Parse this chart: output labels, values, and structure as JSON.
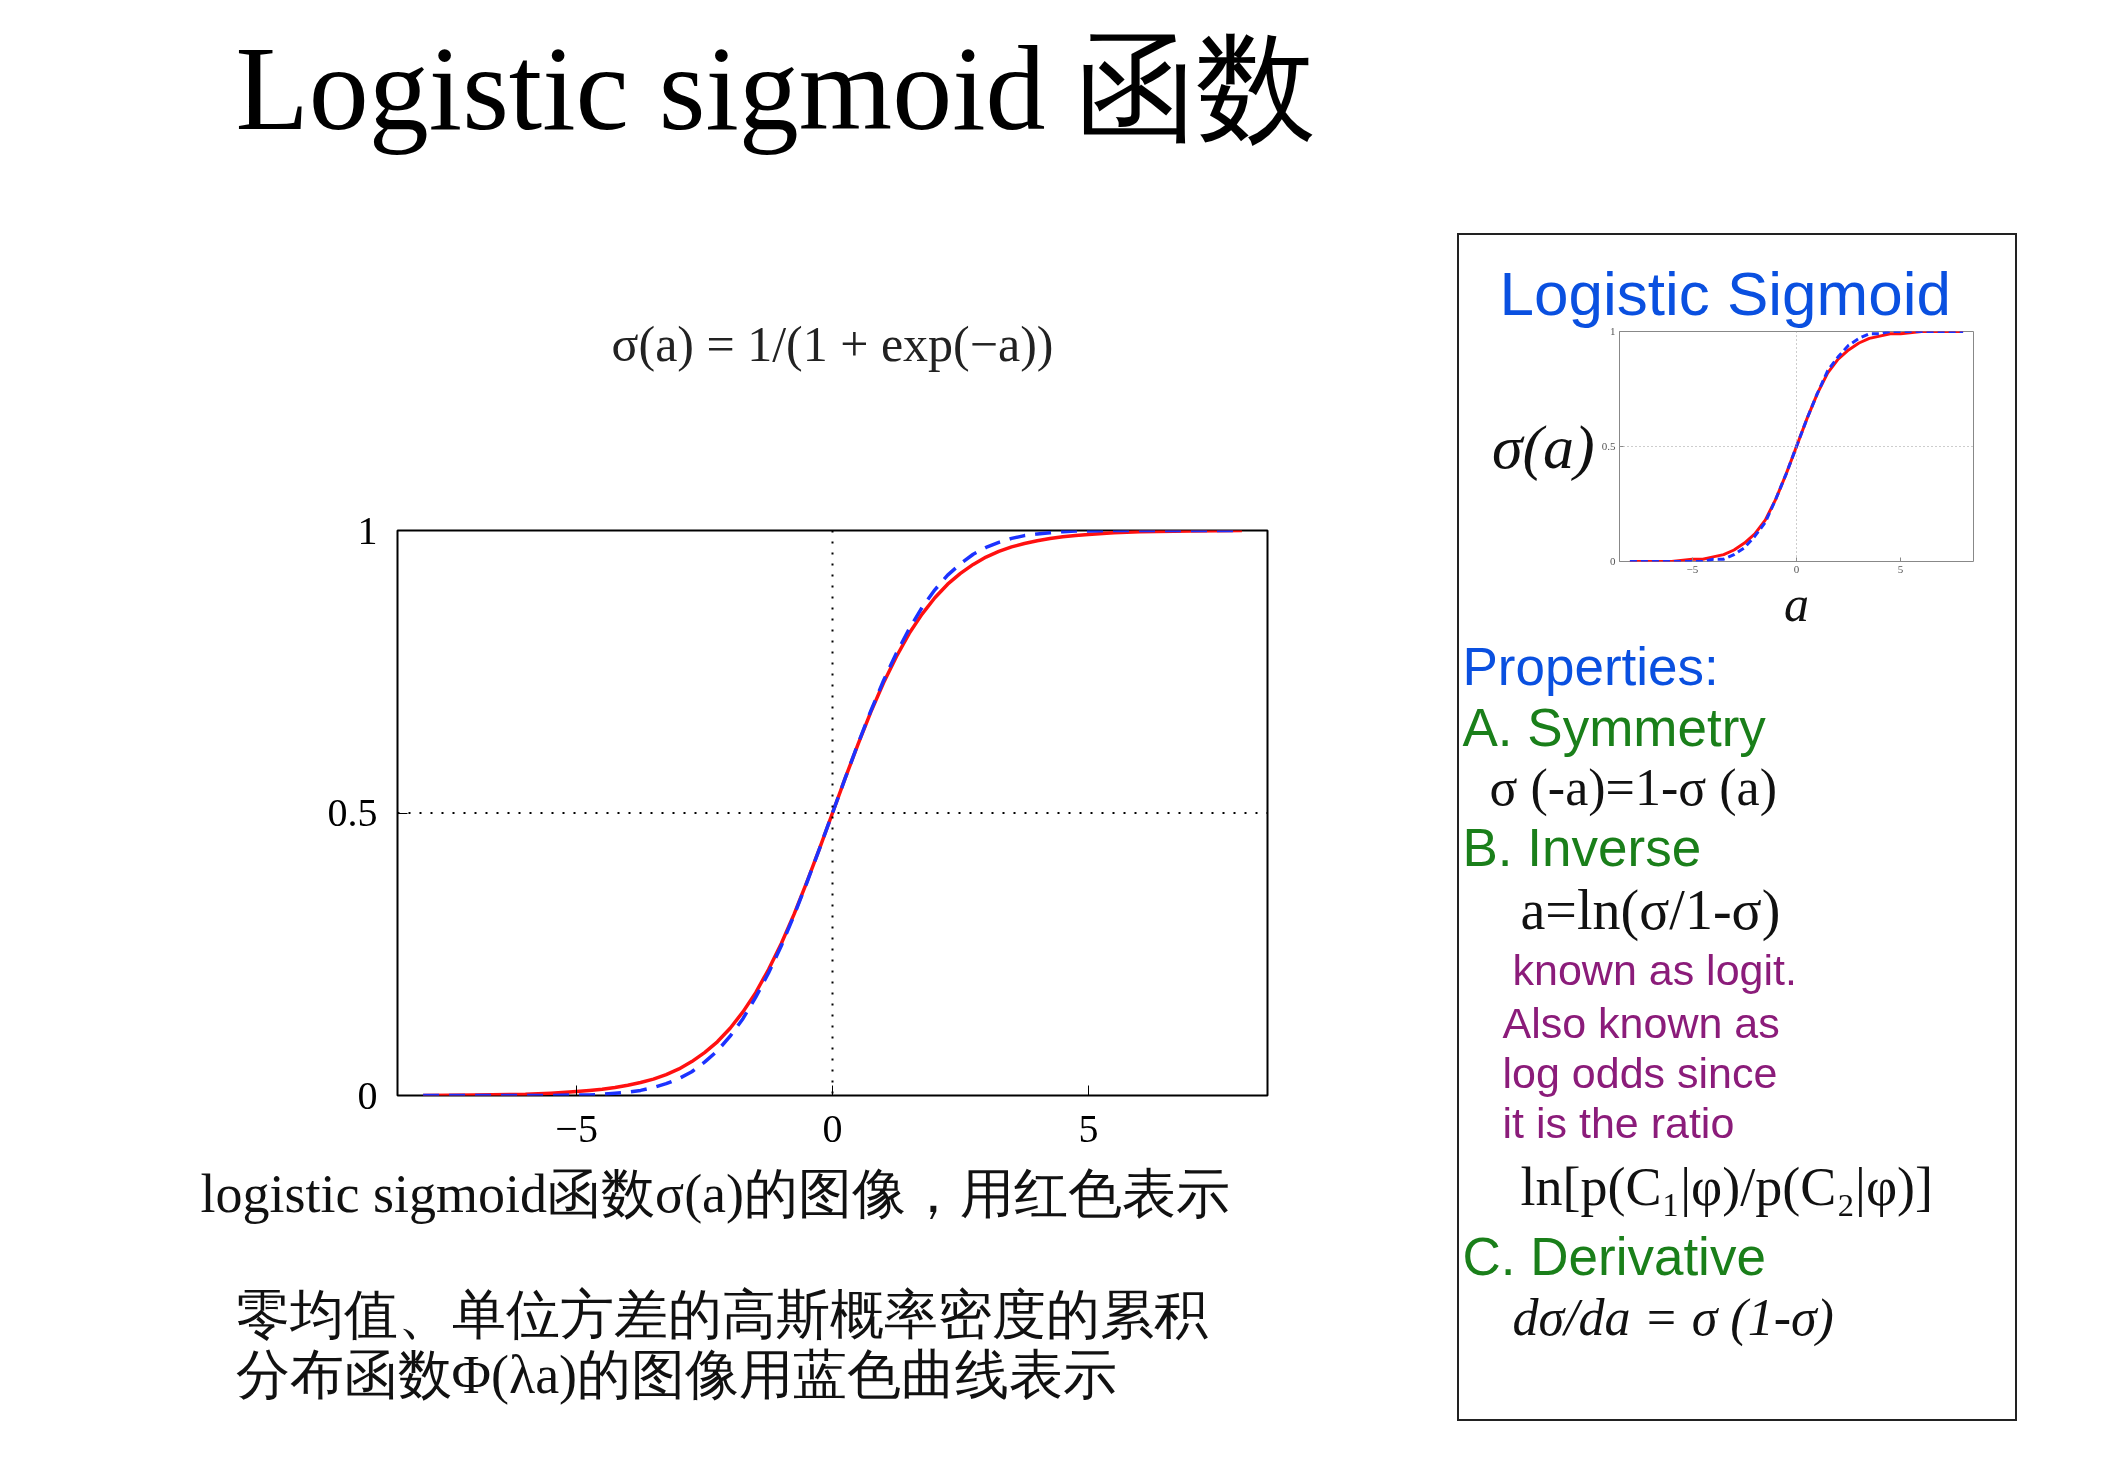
{
  "chart_data": [
    {
      "type": "line",
      "title": "Logistic sigmoid 函数",
      "subtitle": "σ(a) = 1/(1 + exp(−a))",
      "x": [
        -8,
        -7,
        -6,
        -5.5,
        -5,
        -4.75,
        -4.5,
        -4.25,
        -4,
        -3.75,
        -3.5,
        -3.25,
        -3,
        -2.75,
        -2.5,
        -2.25,
        -2,
        -1.75,
        -1.5,
        -1.25,
        -1,
        -0.75,
        -0.5,
        -0.25,
        0,
        0.25,
        0.5,
        0.75,
        1,
        1.25,
        1.5,
        1.75,
        2,
        2.25,
        2.5,
        2.75,
        3,
        3.25,
        3.5,
        3.75,
        4,
        4.25,
        4.5,
        4.75,
        5,
        5.5,
        6,
        7,
        8
      ],
      "series": [
        {
          "color": "#ff1010",
          "line_style": "solid",
          "values": [
            0,
            0.001,
            0.002,
            0.004,
            0.007,
            0.009,
            0.011,
            0.014,
            0.018,
            0.023,
            0.029,
            0.037,
            0.047,
            0.06,
            0.076,
            0.095,
            0.119,
            0.148,
            0.182,
            0.223,
            0.269,
            0.321,
            0.378,
            0.438,
            0.5,
            0.562,
            0.622,
            0.679,
            0.731,
            0.777,
            0.818,
            0.852,
            0.881,
            0.905,
            0.924,
            0.94,
            0.953,
            0.963,
            0.971,
            0.977,
            0.982,
            0.986,
            0.989,
            0.991,
            0.993,
            0.996,
            0.998,
            0.999,
            1
          ]
        },
        {
          "color": "#1c32ff",
          "line_style": "dashed",
          "values": [
            0,
            0,
            0,
            0,
            0.001,
            0.001,
            0.002,
            0.004,
            0.006,
            0.009,
            0.014,
            0.021,
            0.03,
            0.042,
            0.059,
            0.079,
            0.105,
            0.136,
            0.174,
            0.217,
            0.265,
            0.319,
            0.377,
            0.438,
            0.5,
            0.562,
            0.623,
            0.681,
            0.735,
            0.783,
            0.826,
            0.864,
            0.895,
            0.921,
            0.941,
            0.958,
            0.97,
            0.979,
            0.986,
            0.991,
            0.994,
            0.996,
            0.998,
            0.999,
            0.999,
            1,
            1,
            1,
            1
          ]
        }
      ],
      "xlim": [
        -8.5,
        8.5
      ],
      "ylim": [
        0,
        1
      ],
      "xticks": [
        {
          "value": -5,
          "label": "−5"
        },
        0,
        5
      ],
      "yticks": [
        0,
        0.5,
        1
      ],
      "ref_lines": [
        {
          "axis": "x",
          "value": 0,
          "color": "#000000",
          "line_style": "dotted"
        },
        {
          "axis": "y",
          "value": 0.5,
          "color": "#000000",
          "line_style": "dotted"
        }
      ],
      "annotations": [
        "logistic sigmoid函数σ(a)的图像，用红色表示",
        "零均值、单位方差的高斯概率密度的累积分布函数Φ(λa)的图像用蓝色曲线表示"
      ]
    },
    {
      "type": "line",
      "title": "Logistic Sigmoid",
      "xlabel": "a",
      "ylabel": "σ(a)",
      "x": [
        -8,
        -7,
        -6,
        -5,
        -4.5,
        -4,
        -3.5,
        -3,
        -2.5,
        -2,
        -1.5,
        -1,
        -0.5,
        0,
        0.5,
        1,
        1.5,
        2,
        2.5,
        3,
        3.5,
        4,
        4.5,
        5,
        6,
        7,
        8
      ],
      "series": [
        {
          "color": "#ff1010",
          "line_style": "solid",
          "values": [
            0,
            0,
            0,
            0.01,
            0.01,
            0.02,
            0.03,
            0.05,
            0.08,
            0.12,
            0.18,
            0.27,
            0.38,
            0.5,
            0.62,
            0.73,
            0.82,
            0.88,
            0.92,
            0.95,
            0.97,
            0.98,
            0.99,
            0.99,
            1,
            1,
            1
          ]
        },
        {
          "color": "#1c32ff",
          "line_style": "dashed",
          "values": [
            0,
            0,
            0,
            0,
            0,
            0.01,
            0.01,
            0.03,
            0.06,
            0.11,
            0.17,
            0.27,
            0.38,
            0.5,
            0.62,
            0.73,
            0.83,
            0.89,
            0.94,
            0.97,
            0.99,
            0.99,
            1,
            1,
            1,
            1,
            1
          ]
        }
      ],
      "xlim": [
        -8.5,
        8.5
      ],
      "ylim": [
        0,
        1
      ],
      "xticks": [
        {
          "value": -5,
          "label": "−5"
        },
        0,
        5
      ],
      "yticks": [
        0,
        0.5,
        1
      ],
      "ref_lines": [
        {
          "axis": "x",
          "value": 0,
          "color": "#9a9a9a",
          "line_style": "dotted"
        },
        {
          "axis": "y",
          "value": 0.5,
          "color": "#9a9a9a",
          "line_style": "dotted"
        }
      ],
      "annotations": [
        "Properties:",
        "A. Symmetry",
        "σ (-a)=1-σ (a)",
        "B. Inverse",
        "a=ln(σ/1-σ)",
        "known as logit.",
        "Also known as",
        "log odds since",
        "it is the ratio",
        "ln[p(C₁|φ)/p(C₂|φ)]",
        "C. Derivative",
        "dσ/da = σ (1-σ)"
      ]
    }
  ]
}
